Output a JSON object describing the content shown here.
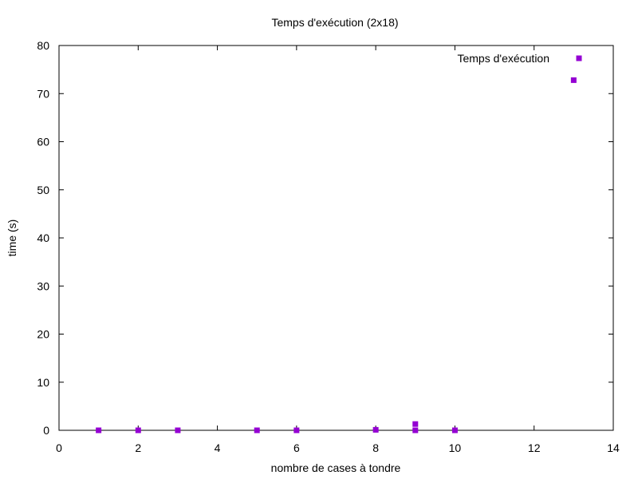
{
  "chart_data": {
    "type": "scatter",
    "title": "Temps d'exécution (2x18)",
    "xlabel": "nombre de cases à tondre",
    "ylabel": "time (s)",
    "xlim": [
      0,
      14
    ],
    "ylim": [
      0,
      80
    ],
    "xticks": [
      "0",
      "2",
      "4",
      "6",
      "8",
      "10",
      "12",
      "14"
    ],
    "yticks": [
      "0",
      "10",
      "20",
      "30",
      "40",
      "50",
      "60",
      "70",
      "80"
    ],
    "grid": false,
    "legend_position": "top-right",
    "series": [
      {
        "name": "Temps d'exécution",
        "color": "#9400D3",
        "marker": "square",
        "points": [
          {
            "x": 1,
            "y": 0
          },
          {
            "x": 2,
            "y": 0
          },
          {
            "x": 3,
            "y": 0
          },
          {
            "x": 5,
            "y": 0
          },
          {
            "x": 6,
            "y": 0
          },
          {
            "x": 8,
            "y": 0.1
          },
          {
            "x": 9,
            "y": 0
          },
          {
            "x": 9,
            "y": 1.3
          },
          {
            "x": 10,
            "y": 0
          },
          {
            "x": 13,
            "y": 72.8
          }
        ]
      }
    ]
  }
}
